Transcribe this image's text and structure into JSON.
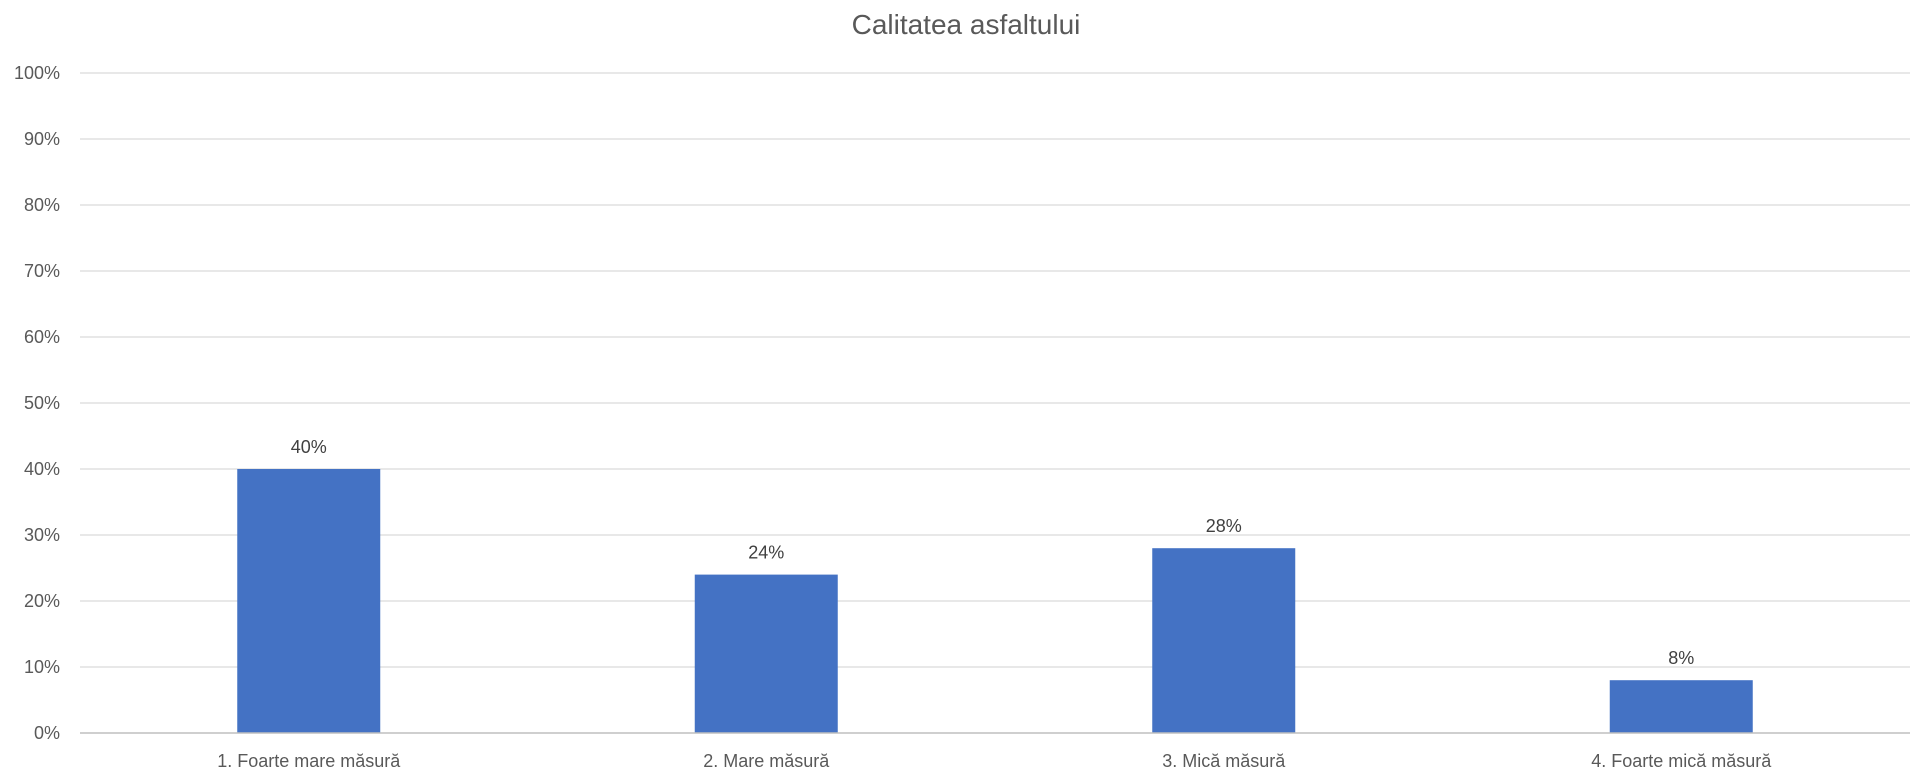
{
  "chart_data": {
    "type": "bar",
    "title": "Calitatea asfaltului",
    "xlabel": "",
    "ylabel": "",
    "categories": [
      "1. Foarte mare măsură",
      "2. Mare măsură",
      "3. Mică măsură",
      "4. Foarte mică măsură"
    ],
    "values": [
      40,
      24,
      28,
      8
    ],
    "data_labels": [
      "40%",
      "24%",
      "28%",
      "8%"
    ],
    "ylim": [
      0,
      100
    ],
    "y_ticks": [
      0,
      10,
      20,
      30,
      40,
      50,
      60,
      70,
      80,
      90,
      100
    ],
    "y_tick_labels": [
      "0%",
      "10%",
      "20%",
      "30%",
      "40%",
      "50%",
      "60%",
      "70%",
      "80%",
      "90%",
      "100%"
    ],
    "grid": true,
    "legend": "none",
    "bar_color": "#4472C4",
    "gridline_color": "#D9D9D9",
    "text_color": "#595959"
  }
}
